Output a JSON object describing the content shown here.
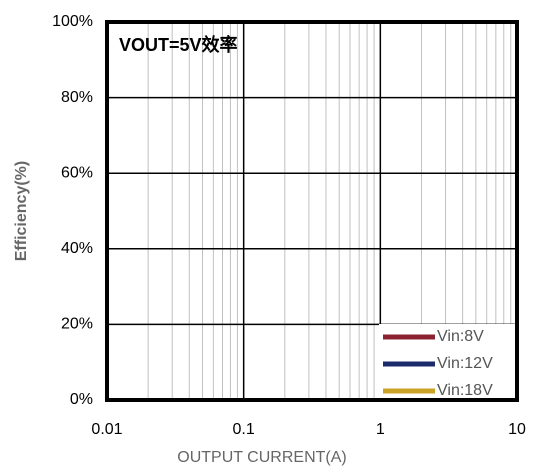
{
  "chart_data": {
    "type": "line",
    "title": "VOUT=5V效率",
    "xlabel": "OUTPUT CURRENT(A)",
    "ylabel": "Efficiency(%)",
    "x": [],
    "series": [
      {
        "name": "Vin:8V",
        "color": "#8b2232",
        "values": []
      },
      {
        "name": "Vin:12V",
        "color": "#1b2a6b",
        "values": []
      },
      {
        "name": "Vin:18V",
        "color": "#c9a227",
        "values": []
      }
    ],
    "xlog": true,
    "xlim": [
      0.01,
      10
    ],
    "xticks": [
      0.01,
      0.1,
      1,
      10
    ],
    "ylim": [
      0,
      100
    ],
    "yticks": [
      {
        "value": 0,
        "label": "0%"
      },
      {
        "value": 20,
        "label": "20%"
      },
      {
        "value": 40,
        "label": "40%"
      },
      {
        "value": 60,
        "label": "60%"
      },
      {
        "value": 80,
        "label": "80%"
      },
      {
        "value": 100,
        "label": "100%"
      }
    ],
    "grid": true,
    "legend": "lower right"
  }
}
